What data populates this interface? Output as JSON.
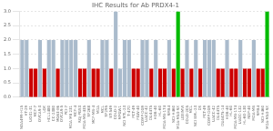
{
  "chart_data": {
    "type": "bar",
    "title": "IHC Results for Ab PRDX4-1",
    "categories": [
      "NOA499-H15",
      "HT-29",
      "UO31-31",
      "MCF-7",
      "OVCAR-3",
      "LOX",
      "HCL1480",
      "CC-2380",
      "MG63-E6",
      "OVCAR-5",
      "PCI-7",
      "MDA MB 231",
      "MCF-4",
      "RGJ-PGS3",
      "MDA-MB-435",
      "SF268",
      "MCF-MB-4",
      "MDA",
      "MCL",
      "SF295",
      "BT-549",
      "COLO-2",
      "MPGW1",
      "NCI MTL-23",
      "T-47D",
      "PCT-49",
      "FGW-40",
      "COMP-DG9",
      "UACC-42",
      "DU4475",
      "HOB-40",
      "HL-60",
      "MDA-MB-174",
      "RMB4",
      "NCI-H460",
      "MDA-M53-RX",
      "LOXIMVI",
      "COLO-205",
      "MCL",
      "NCI BML-23",
      "DS",
      "PCT-49",
      "COMP-DG9",
      "UACC-42",
      "DU4475",
      "DU4475-14",
      "HOB-40",
      "HL-60",
      "MDA-MB-174",
      "UACC-132",
      "HL-60-130",
      "ROP-40",
      "MDA-MB",
      "RMB4",
      "NCI-H460",
      "MDA-M53-RX"
    ],
    "values": [
      2,
      2,
      1,
      1,
      2,
      1,
      2,
      2,
      1,
      2,
      2,
      2,
      2,
      1,
      1,
      2,
      1,
      1,
      2,
      2,
      1,
      3,
      1,
      2,
      2,
      1,
      1,
      2,
      2,
      1,
      2,
      1,
      1,
      2,
      1,
      3,
      1,
      2,
      1,
      2,
      1,
      2,
      2,
      2,
      1,
      1,
      2,
      1,
      1,
      2,
      1,
      1,
      2,
      1,
      1,
      3
    ],
    "colors": [
      "#aabbcc",
      "#aabbcc",
      "#cc0000",
      "#cc0000",
      "#aabbcc",
      "#cc0000",
      "#aabbcc",
      "#aabbcc",
      "#cc0000",
      "#aabbcc",
      "#aabbcc",
      "#aabbcc",
      "#aabbcc",
      "#cc0000",
      "#cc0000",
      "#aabbcc",
      "#cc0000",
      "#cc0000",
      "#aabbcc",
      "#aabbcc",
      "#cc0000",
      "#aabbcc",
      "#aabbcc",
      "#aabbcc",
      "#aabbcc",
      "#cc0000",
      "#cc0000",
      "#aabbcc",
      "#aabbcc",
      "#cc0000",
      "#aabbcc",
      "#cc0000",
      "#cc0000",
      "#aabbcc",
      "#cc0000",
      "#00bb00",
      "#cc0000",
      "#aabbcc",
      "#cc0000",
      "#aabbcc",
      "#cc0000",
      "#aabbcc",
      "#aabbcc",
      "#aabbcc",
      "#cc0000",
      "#cc0000",
      "#aabbcc",
      "#cc0000",
      "#cc0000",
      "#aabbcc",
      "#cc0000",
      "#cc0000",
      "#aabbcc",
      "#cc0000",
      "#cc0000",
      "#00bb00"
    ],
    "ylim": [
      0,
      3.0
    ],
    "yticks": [
      {
        "value": 0,
        "label": "0.0"
      },
      0.5,
      {
        "value": 1,
        "label": "1.0"
      },
      1.5,
      {
        "value": 2,
        "label": "2.0"
      },
      2.5,
      {
        "value": 3,
        "label": "3.0"
      }
    ],
    "grid": true
  }
}
